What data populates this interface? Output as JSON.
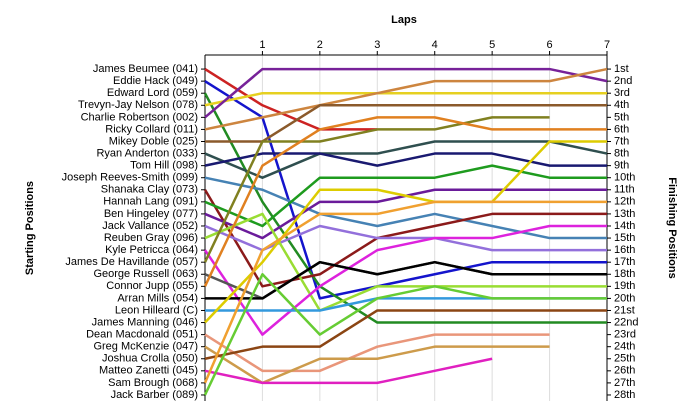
{
  "chart_data": {
    "type": "line",
    "title": "Laps",
    "ylabel": "Starting Positions",
    "y2label": "Finishing Positions",
    "x": [
      0,
      1,
      2,
      3,
      4,
      5,
      6,
      7
    ],
    "xlim": [
      0,
      7
    ],
    "xticks": [
      1,
      2,
      3,
      4,
      5,
      6,
      7
    ],
    "ylim": [
      28.5,
      0
    ],
    "y2lim": [
      28.5,
      0
    ],
    "grid": true,
    "yticks": [
      {
        "value": 1,
        "label": "James Beumee (041)"
      },
      {
        "value": 2,
        "label": "Eddie Hack (049)"
      },
      {
        "value": 3,
        "label": "Edward Lord (059)"
      },
      {
        "value": 4,
        "label": "Trevyn-Jay Nelson (078)"
      },
      {
        "value": 5,
        "label": "Charlie Robertson (002)"
      },
      {
        "value": 6,
        "label": "Ricky Collard (011)"
      },
      {
        "value": 7,
        "label": "Mikey Doble (025)"
      },
      {
        "value": 8,
        "label": "Ryan Anderton (033)"
      },
      {
        "value": 9,
        "label": "Tom Hill (098)"
      },
      {
        "value": 10,
        "label": "Joseph Reeves-Smith (099)"
      },
      {
        "value": 11,
        "label": "Shanaka Clay (073)"
      },
      {
        "value": 12,
        "label": "Hannah Lang (091)"
      },
      {
        "value": 13,
        "label": "Ben Hingeley (077)"
      },
      {
        "value": 14,
        "label": "Jack Vallance (052)"
      },
      {
        "value": 15,
        "label": "Reuben Gray (096)"
      },
      {
        "value": 16,
        "label": "Kyle Petricca (064)"
      },
      {
        "value": 17,
        "label": "James De Havillande (057)"
      },
      {
        "value": 18,
        "label": "George Russell (063)"
      },
      {
        "value": 19,
        "label": "Connor Jupp (055)"
      },
      {
        "value": 20,
        "label": "Arran Mills (054)"
      },
      {
        "value": 21,
        "label": "Leon Hilleard (C)"
      },
      {
        "value": 22,
        "label": "James Manning (046)"
      },
      {
        "value": 23,
        "label": "Dean Macdonald (051)"
      },
      {
        "value": 24,
        "label": "Greg McKenzie (047)"
      },
      {
        "value": 25,
        "label": "Joshua Crolla (050)"
      },
      {
        "value": 26,
        "label": "Matteo Zanetti (045)"
      },
      {
        "value": 27,
        "label": "Sam Brough (068)"
      },
      {
        "value": 28,
        "label": "Jack Barber (089)"
      }
    ],
    "y2ticks": [
      {
        "value": 1,
        "label": "1st"
      },
      {
        "value": 2,
        "label": "2nd"
      },
      {
        "value": 3,
        "label": "3rd"
      },
      {
        "value": 4,
        "label": "4th"
      },
      {
        "value": 5,
        "label": "5th"
      },
      {
        "value": 6,
        "label": "6th"
      },
      {
        "value": 7,
        "label": "7th"
      },
      {
        "value": 8,
        "label": "8th"
      },
      {
        "value": 9,
        "label": "9th"
      },
      {
        "value": 10,
        "label": "10th"
      },
      {
        "value": 11,
        "label": "11th"
      },
      {
        "value": 12,
        "label": "12th"
      },
      {
        "value": 13,
        "label": "13th"
      },
      {
        "value": 14,
        "label": "14th"
      },
      {
        "value": 15,
        "label": "15th"
      },
      {
        "value": 16,
        "label": "16th"
      },
      {
        "value": 17,
        "label": "17th"
      },
      {
        "value": 18,
        "label": "18th"
      },
      {
        "value": 19,
        "label": "19th"
      },
      {
        "value": 20,
        "label": "20th"
      },
      {
        "value": 21,
        "label": "21st"
      },
      {
        "value": 22,
        "label": "22nd"
      },
      {
        "value": 23,
        "label": "23rd"
      },
      {
        "value": 24,
        "label": "24th"
      },
      {
        "value": 25,
        "label": "25th"
      },
      {
        "value": 26,
        "label": "26th"
      },
      {
        "value": 27,
        "label": "27th"
      },
      {
        "value": 28,
        "label": "28th"
      }
    ],
    "series": [
      {
        "color": "#cc2222",
        "values": [
          1,
          4,
          6,
          6,
          null,
          null,
          null,
          null
        ]
      },
      {
        "color": "#1414cc",
        "values": [
          2,
          5,
          20,
          19,
          18,
          17,
          17,
          17
        ]
      },
      {
        "color": "#228b22",
        "values": [
          3,
          12,
          19,
          22,
          22,
          22,
          22,
          22
        ]
      },
      {
        "color": "#e6d020",
        "values": [
          4,
          3,
          3,
          3,
          3,
          3,
          3,
          3
        ]
      },
      {
        "color": "#772299",
        "values": [
          5,
          1,
          1,
          1,
          1,
          1,
          1,
          2
        ]
      },
      {
        "color": "#cd853f",
        "values": [
          6,
          5,
          4,
          3,
          2,
          2,
          2,
          1
        ]
      },
      {
        "color": "#8b5a2b",
        "values": [
          7,
          7,
          4,
          4,
          4,
          4,
          4,
          4
        ]
      },
      {
        "color": "#2f4f4f",
        "values": [
          8,
          10,
          8,
          8,
          7,
          7,
          7,
          8
        ]
      },
      {
        "color": "#191970",
        "values": [
          9,
          8,
          8,
          9,
          8,
          8,
          9,
          9
        ]
      },
      {
        "color": "#4682b4",
        "values": [
          10,
          11,
          13,
          14,
          13,
          14,
          15,
          15
        ]
      },
      {
        "color": "#8b1a1a",
        "values": [
          11,
          19,
          18,
          15,
          14,
          13,
          13,
          13
        ]
      },
      {
        "color": "#1e9b1e",
        "values": [
          12,
          14,
          10,
          10,
          10,
          9,
          10,
          10
        ]
      },
      {
        "color": "#6a1b9a",
        "values": [
          13,
          15,
          12,
          12,
          11,
          11,
          11,
          11
        ]
      },
      {
        "color": "#9370db",
        "values": [
          14,
          16,
          14,
          15,
          15,
          16,
          16,
          16
        ]
      },
      {
        "color": "#99dd33",
        "values": [
          15,
          13,
          21,
          19,
          19,
          19,
          19,
          19
        ]
      },
      {
        "color": "#dd22dd",
        "values": [
          16,
          23,
          19,
          16,
          15,
          15,
          14,
          14
        ]
      },
      {
        "color": "#808020",
        "values": [
          17,
          7,
          7,
          6,
          6,
          5,
          5,
          null
        ]
      },
      {
        "color": "#555555",
        "values": [
          18,
          20,
          17,
          18,
          17,
          18,
          18,
          18
        ]
      },
      {
        "color": "#e08020",
        "values": [
          19,
          9,
          6,
          5,
          5,
          6,
          6,
          6
        ]
      },
      {
        "color": "#000000",
        "values": [
          20,
          20,
          17,
          18,
          17,
          18,
          18,
          18
        ]
      },
      {
        "color": "#3399dd",
        "values": [
          21,
          21,
          21,
          20,
          20,
          20,
          20,
          20
        ]
      },
      {
        "color": "#ddcc00",
        "values": [
          22,
          17,
          11,
          11,
          12,
          12,
          7,
          7
        ]
      },
      {
        "color": "#e9967a",
        "values": [
          23,
          26,
          26,
          24,
          23,
          23,
          23,
          null
        ]
      },
      {
        "color": "#cd9b4b",
        "values": [
          24,
          27,
          25,
          25,
          24,
          24,
          24,
          null
        ]
      },
      {
        "color": "#8b4513",
        "values": [
          25,
          24,
          24,
          21,
          21,
          21,
          21,
          21
        ]
      },
      {
        "color": "#e020c0",
        "values": [
          26,
          27,
          27,
          27,
          26,
          25,
          null,
          null
        ]
      },
      {
        "color": "#f0a030",
        "values": [
          27,
          16,
          13,
          13,
          12,
          12,
          12,
          12
        ]
      },
      {
        "color": "#66cc33",
        "values": [
          28,
          18,
          23,
          20,
          19,
          20,
          20,
          20
        ]
      }
    ]
  }
}
